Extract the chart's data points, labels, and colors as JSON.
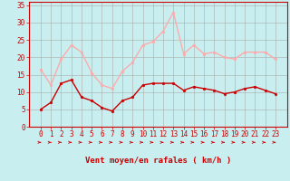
{
  "hours": [
    0,
    1,
    2,
    3,
    4,
    5,
    6,
    7,
    8,
    9,
    10,
    11,
    12,
    13,
    14,
    15,
    16,
    17,
    18,
    19,
    20,
    21,
    22,
    23
  ],
  "wind_avg": [
    5,
    7,
    12.5,
    13.5,
    8.5,
    7.5,
    5.5,
    4.5,
    7.5,
    8.5,
    12,
    12.5,
    12.5,
    12.5,
    10.5,
    11.5,
    11,
    10.5,
    9.5,
    10,
    11,
    11.5,
    10.5,
    9.5
  ],
  "wind_gust": [
    16.5,
    12,
    19.5,
    23.5,
    21.5,
    15.5,
    12,
    11,
    16,
    18.5,
    23.5,
    24.5,
    27.5,
    33,
    21,
    23.5,
    21,
    21.5,
    20,
    19.5,
    21.5,
    21.5,
    21.5,
    19.5
  ],
  "bg_color": "#c8eef0",
  "grid_color": "#aaaaaa",
  "avg_color": "#cc0000",
  "gust_color": "#ffaaaa",
  "xlabel": "Vent moyen/en rafales ( km/h )",
  "ylim": [
    0,
    36
  ],
  "yticks": [
    0,
    5,
    10,
    15,
    20,
    25,
    30,
    35
  ],
  "axis_color": "#cc0000",
  "xlabel_color": "#cc0000",
  "tick_fontsize": 5.5,
  "xlabel_fontsize": 6.5
}
